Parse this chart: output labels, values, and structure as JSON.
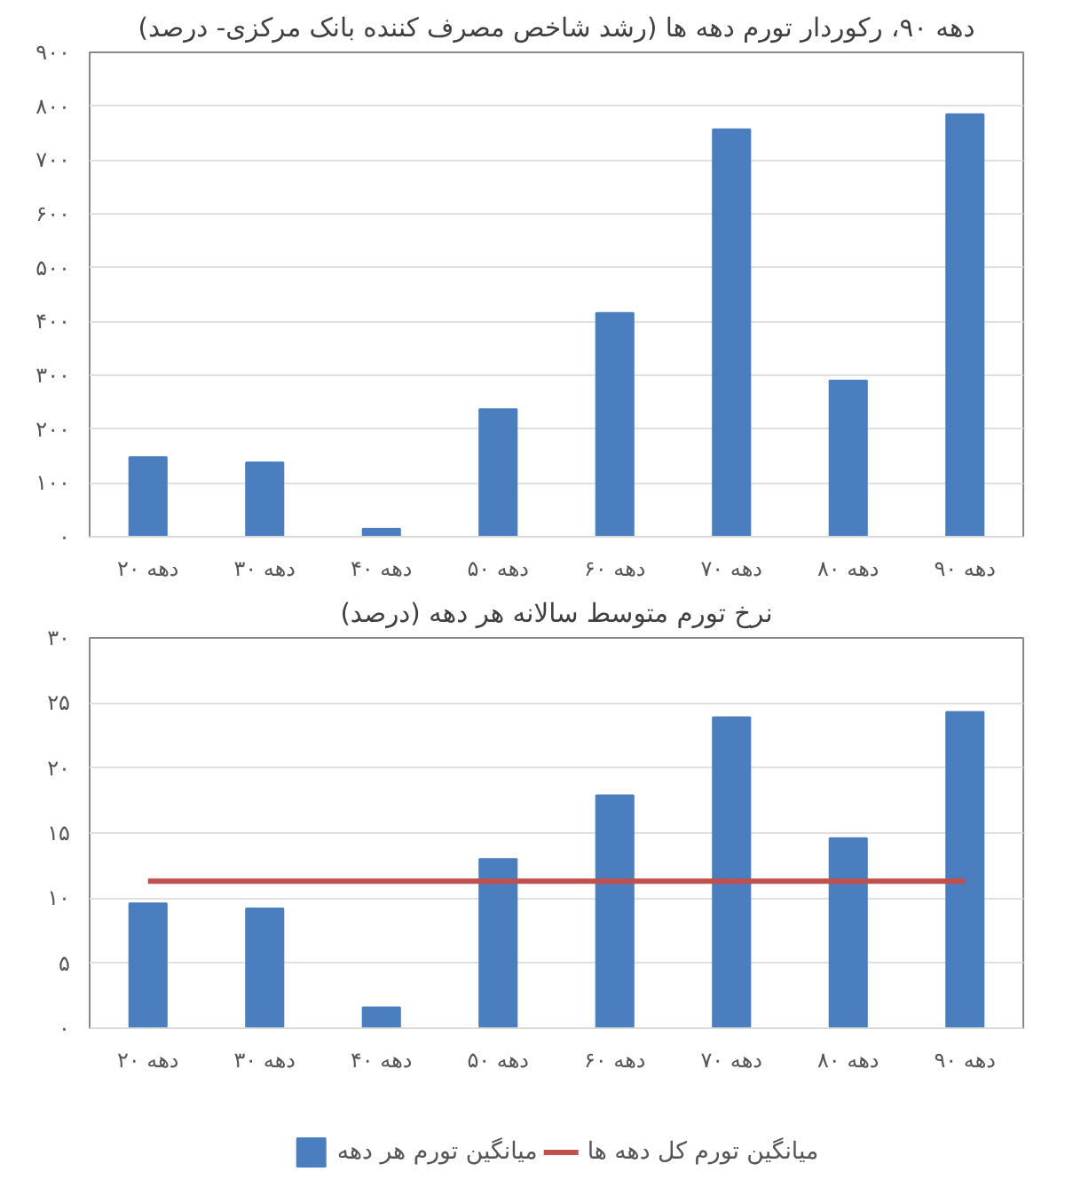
{
  "chart_data": [
    {
      "type": "bar",
      "title": "دهه ۹۰، رکوردار تورم دهه ها (رشد شاخص مصرف کننده بانک مرکزی- درصد)",
      "categories": [
        "دهه ۲۰",
        "دهه ۳۰",
        "دهه ۴۰",
        "دهه ۵۰",
        "دهه ۶۰",
        "دهه ۷۰",
        "دهه ۸۰",
        "دهه ۹۰"
      ],
      "series": [
        {
          "color": "#4a7ebf",
          "values": [
            148,
            138,
            15,
            237,
            416,
            757,
            290,
            785
          ]
        }
      ],
      "ylim": [
        0,
        900
      ],
      "yticks": [
        {
          "value": 0,
          "label": "۰"
        },
        {
          "value": 100,
          "label": "۱۰۰"
        },
        {
          "value": 200,
          "label": "۲۰۰"
        },
        {
          "value": 300,
          "label": "۳۰۰"
        },
        {
          "value": 400,
          "label": "۴۰۰"
        },
        {
          "value": 500,
          "label": "۵۰۰"
        },
        {
          "value": 600,
          "label": "۶۰۰"
        },
        {
          "value": 700,
          "label": "۷۰۰"
        },
        {
          "value": 800,
          "label": "۸۰۰"
        },
        {
          "value": 900,
          "label": "۹۰۰"
        }
      ],
      "grid": "y"
    },
    {
      "type": "bar",
      "title": "نرخ تورم متوسط سالانه هر دهه (درصد)",
      "categories": [
        "دهه ۲۰",
        "دهه ۳۰",
        "دهه ۴۰",
        "دهه ۵۰",
        "دهه ۶۰",
        "دهه ۷۰",
        "دهه ۸۰",
        "دهه ۹۰"
      ],
      "series": [
        {
          "name": "میانگین تورم هر دهه",
          "color": "#4a7ebf",
          "values": [
            9.6,
            9.2,
            1.6,
            13.0,
            17.9,
            23.9,
            14.6,
            24.3
          ]
        },
        {
          "type": "line",
          "name": "میانگین تورم کل دهه ها",
          "color": "#c0504d",
          "values": [
            11.3,
            11.3,
            11.3,
            11.3,
            11.3,
            11.3,
            11.3,
            11.3
          ]
        }
      ],
      "ylim": [
        0,
        30
      ],
      "yticks": [
        {
          "value": 0,
          "label": "۰"
        },
        {
          "value": 5,
          "label": "۵"
        },
        {
          "value": 10,
          "label": "۱۰"
        },
        {
          "value": 15,
          "label": "۱۵"
        },
        {
          "value": 20,
          "label": "۲۰"
        },
        {
          "value": 25,
          "label": "۲۵"
        },
        {
          "value": 30,
          "label": "۳۰"
        }
      ],
      "grid": "y",
      "legend": "bottom"
    }
  ]
}
